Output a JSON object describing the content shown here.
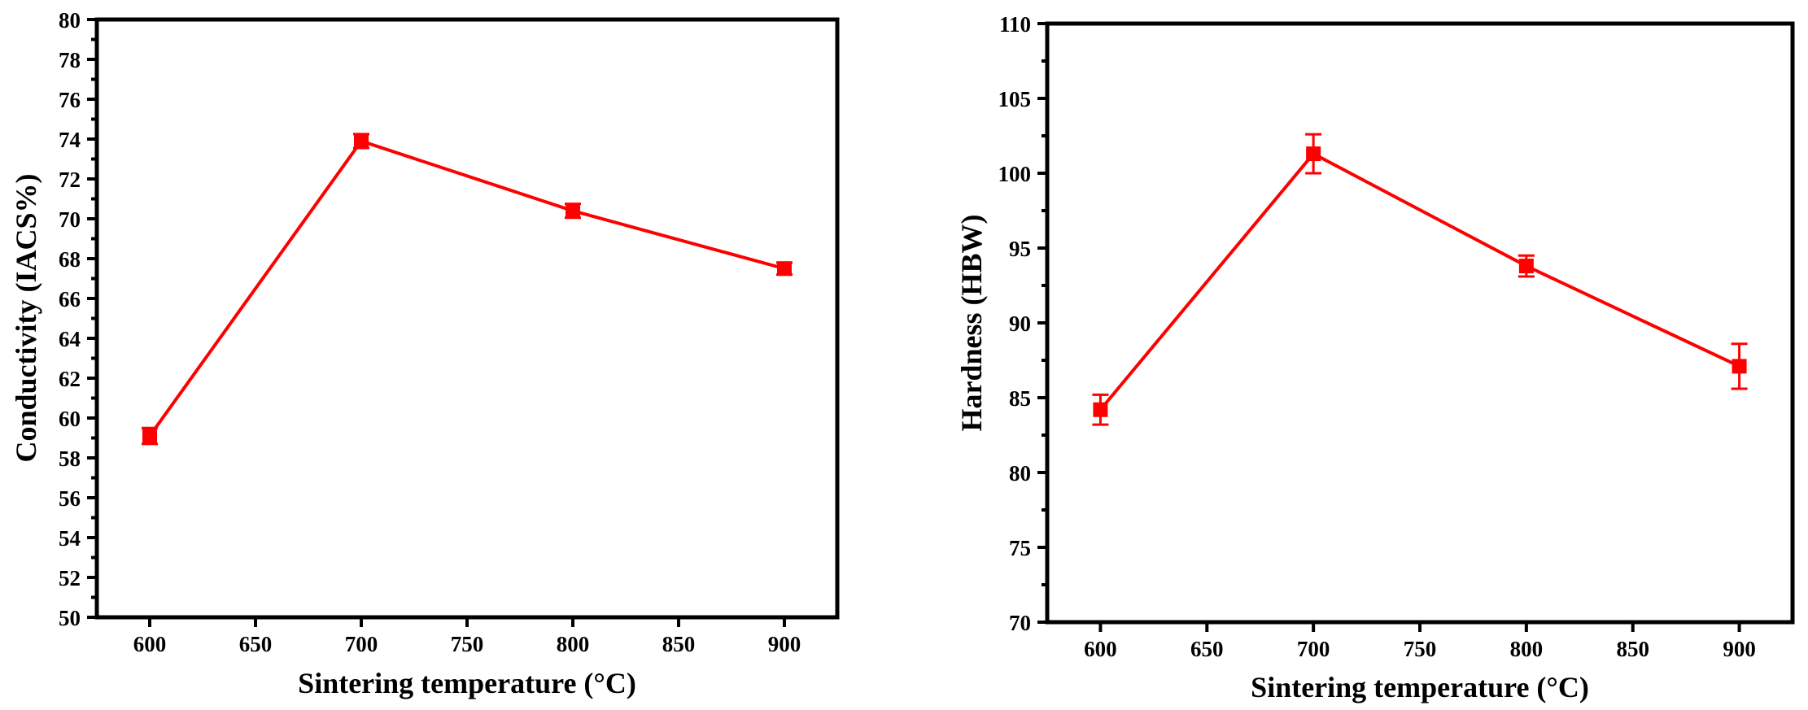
{
  "chart_data": [
    {
      "type": "line",
      "series_color": "#ff0000",
      "x": [
        600,
        700,
        800,
        900
      ],
      "values": [
        59.1,
        73.9,
        70.4,
        67.5
      ],
      "errors": [
        0.4,
        0.35,
        0.35,
        0.3
      ],
      "xlim": [
        575,
        925
      ],
      "ylim": [
        50,
        80
      ],
      "xticks": [
        600,
        650,
        700,
        750,
        800,
        850,
        900
      ],
      "yticks": [
        50,
        52,
        54,
        56,
        58,
        60,
        62,
        64,
        66,
        68,
        70,
        72,
        74,
        76,
        78,
        80
      ],
      "xlabel": "Sintering temperature (°C)",
      "ylabel": "Conductivity (IACS%)",
      "grid": false
    },
    {
      "type": "line",
      "series_color": "#ff0000",
      "x": [
        600,
        700,
        800,
        900
      ],
      "values": [
        84.2,
        101.3,
        93.8,
        87.1
      ],
      "errors": [
        1.0,
        1.3,
        0.7,
        1.5
      ],
      "xlim": [
        575,
        925
      ],
      "ylim": [
        70,
        110
      ],
      "xticks": [
        600,
        650,
        700,
        750,
        800,
        850,
        900
      ],
      "yticks": [
        70,
        75,
        80,
        85,
        90,
        95,
        100,
        105,
        110
      ],
      "xlabel": "Sintering temperature (°C)",
      "ylabel": "Hardness (HBW)",
      "grid": false
    }
  ]
}
